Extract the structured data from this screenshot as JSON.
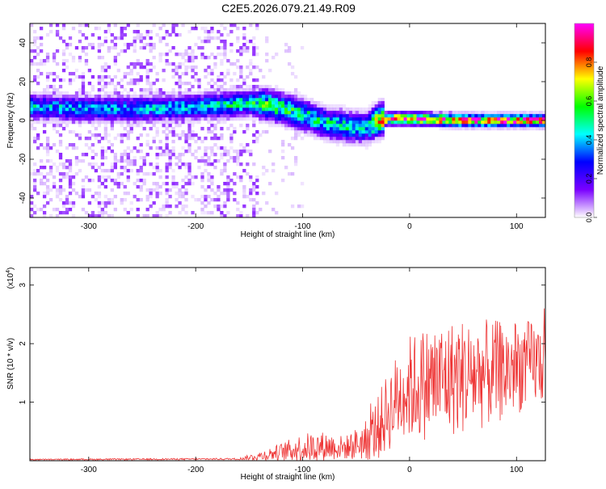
{
  "title": "C2E5.2026.079.21.49.R09",
  "chart_data": [
    {
      "type": "heatmap",
      "xlabel": "Height of straight line (km)",
      "ylabel": "Frequency (Hz)",
      "xlim": [
        -355,
        127
      ],
      "ylim": [
        -50,
        50
      ],
      "xticks": [
        -300,
        -200,
        -100,
        0,
        100
      ],
      "yticks": [
        -40,
        -20,
        0,
        20,
        40
      ],
      "colorbar": {
        "label": "Normalized spectral amplitude",
        "range": [
          0,
          1
        ],
        "ticks": [
          "0.0",
          "0.2",
          "0.4",
          "0.6",
          "0.8"
        ],
        "tick_values": [
          0.0,
          0.2,
          0.4,
          0.6,
          0.8
        ],
        "colors": [
          "#ffffff",
          "#7a00ff",
          "#0000ff",
          "#00ffff",
          "#00ff00",
          "#ffff00",
          "#ff0000",
          "#ff00ff"
        ]
      },
      "ridge": {
        "x": [
          -355,
          -300,
          -250,
          -200,
          -150,
          -130,
          -100,
          -80,
          -60,
          -40,
          -30,
          -20,
          0,
          50,
          127
        ],
        "y": [
          7,
          6,
          6,
          7,
          9,
          8,
          3,
          -1,
          -3,
          -4,
          0,
          1,
          1,
          0,
          0
        ],
        "peak_amplitude": [
          0.45,
          0.4,
          0.42,
          0.45,
          0.55,
          0.6,
          0.55,
          0.5,
          0.5,
          0.45,
          0.85,
          0.95,
          0.92,
          0.98,
          0.98
        ]
      }
    },
    {
      "type": "line",
      "xlabel": "Height of straight line (km)",
      "ylabel": "SNR (10 * v/v)",
      "multiplier": "(x10",
      "multiplier_exp": "4",
      "multiplier_close": ")",
      "xlim": [
        -355,
        127
      ],
      "ylim": [
        0,
        33000
      ],
      "xticks": [
        -300,
        -200,
        -100,
        0,
        100
      ],
      "yticks": [
        1,
        2,
        3
      ],
      "ytick_values": [
        10000,
        20000,
        30000
      ],
      "color": "#ee3333",
      "envelope": {
        "x": [
          -355,
          -160,
          -140,
          -120,
          -100,
          -80,
          -60,
          -40,
          -30,
          -20,
          -10,
          0,
          20,
          50,
          80,
          100,
          127
        ],
        "mean": [
          200,
          300,
          800,
          1500,
          2200,
          2500,
          2200,
          3500,
          5500,
          8500,
          11000,
          12500,
          13500,
          14500,
          15000,
          16000,
          17000
        ],
        "amp": [
          100,
          150,
          800,
          1500,
          2500,
          2500,
          2000,
          3500,
          5500,
          7000,
          8000,
          9000,
          10000,
          10000,
          9000,
          8000,
          7000
        ]
      }
    }
  ]
}
